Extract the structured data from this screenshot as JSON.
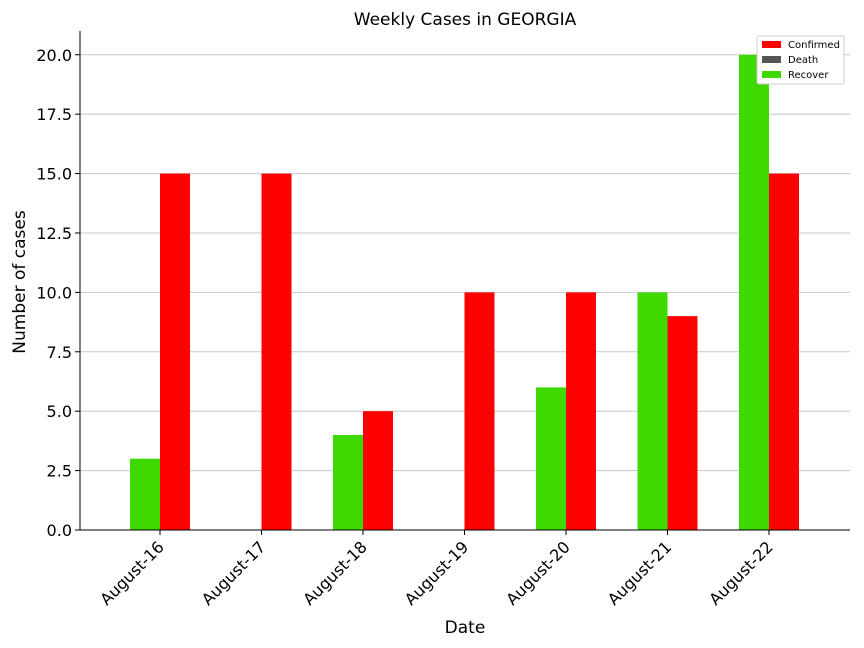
{
  "chart_data": {
    "type": "bar",
    "title": "Weekly Cases in GEORGIA",
    "xlabel": "Date",
    "ylabel": "Number of cases",
    "categories": [
      "August-16",
      "August-17",
      "August-18",
      "August-19",
      "August-20",
      "August-21",
      "August-22"
    ],
    "series": [
      {
        "name": "Confirmed",
        "color": "#ff0000",
        "values": [
          15,
          15,
          5,
          10,
          10,
          9,
          15
        ]
      },
      {
        "name": "Death",
        "color": "#555555",
        "values": [
          0,
          0,
          0,
          0,
          0,
          0,
          0
        ]
      },
      {
        "name": "Recover",
        "color": "#3dd900",
        "values": [
          3,
          0,
          4,
          0,
          6,
          10,
          20
        ]
      }
    ],
    "ylim": [
      0,
      21
    ],
    "yticks": [
      "0.0",
      "2.5",
      "5.0",
      "7.5",
      "10.0",
      "12.5",
      "15.0",
      "17.5",
      "20.0"
    ],
    "grid": "horizontal",
    "legend_position": "top-right"
  }
}
